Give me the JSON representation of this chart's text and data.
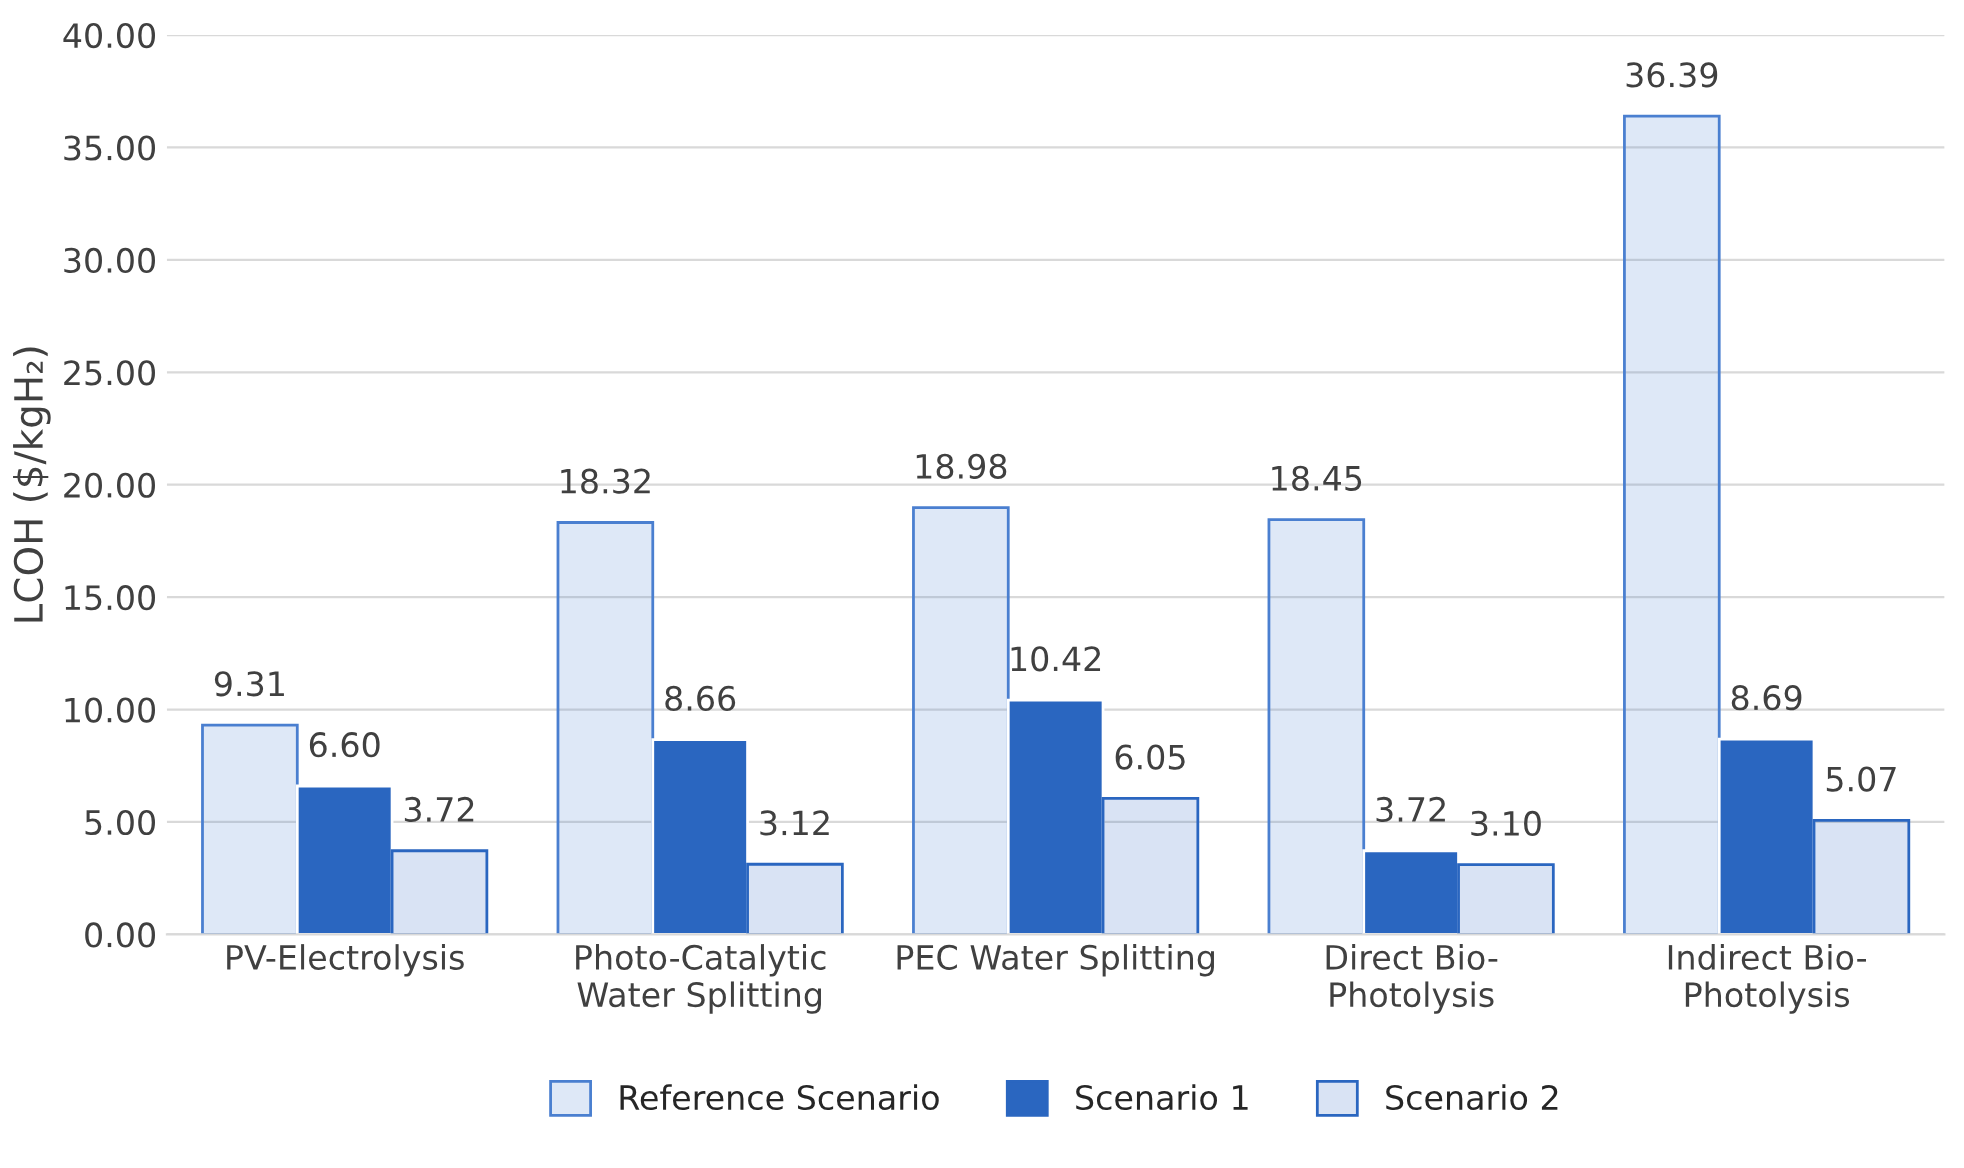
{
  "chart_data": {
    "type": "bar",
    "ylabel": "LCOH ($/kgH₂)",
    "categories": [
      "PV-Electrolysis",
      "Photo-Catalytic\nWater Splitting",
      "PEC Water Splitting",
      "Direct Bio-\nPhotolysis",
      "Indirect Bio-\nPhotolysis"
    ],
    "series": [
      {
        "name": "Reference Scenario",
        "color": "#4a7fd0",
        "values": [
          9.31,
          18.32,
          18.98,
          18.45,
          36.39
        ],
        "value_labels": [
          "9.31",
          "18.32",
          "18.98",
          "18.45",
          "36.39"
        ]
      },
      {
        "name": "Scenario 1",
        "color": "#2a66c0",
        "values": [
          6.6,
          8.66,
          10.42,
          3.72,
          8.69
        ],
        "value_labels": [
          "6.60",
          "8.66",
          "10.42",
          "3.72",
          "8.69"
        ]
      },
      {
        "name": "Scenario 2",
        "color": "#2a66c0",
        "values": [
          3.72,
          3.12,
          6.05,
          3.1,
          5.07
        ],
        "value_labels": [
          "3.72",
          "3.12",
          "6.05",
          "3.10",
          "5.07"
        ]
      }
    ],
    "ylim": [
      0,
      40
    ],
    "yticks": [
      {
        "value": 0,
        "label": "0.00"
      },
      {
        "value": 5,
        "label": "5.00"
      },
      {
        "value": 10,
        "label": "10.00"
      },
      {
        "value": 15,
        "label": "15.00"
      },
      {
        "value": 20,
        "label": "20.00"
      },
      {
        "value": 25,
        "label": "25.00"
      },
      {
        "value": 30,
        "label": "30.00"
      },
      {
        "value": 35,
        "label": "35.00"
      },
      {
        "value": 40,
        "label": "40.00"
      }
    ],
    "grid": "y",
    "legend": "bottom"
  }
}
